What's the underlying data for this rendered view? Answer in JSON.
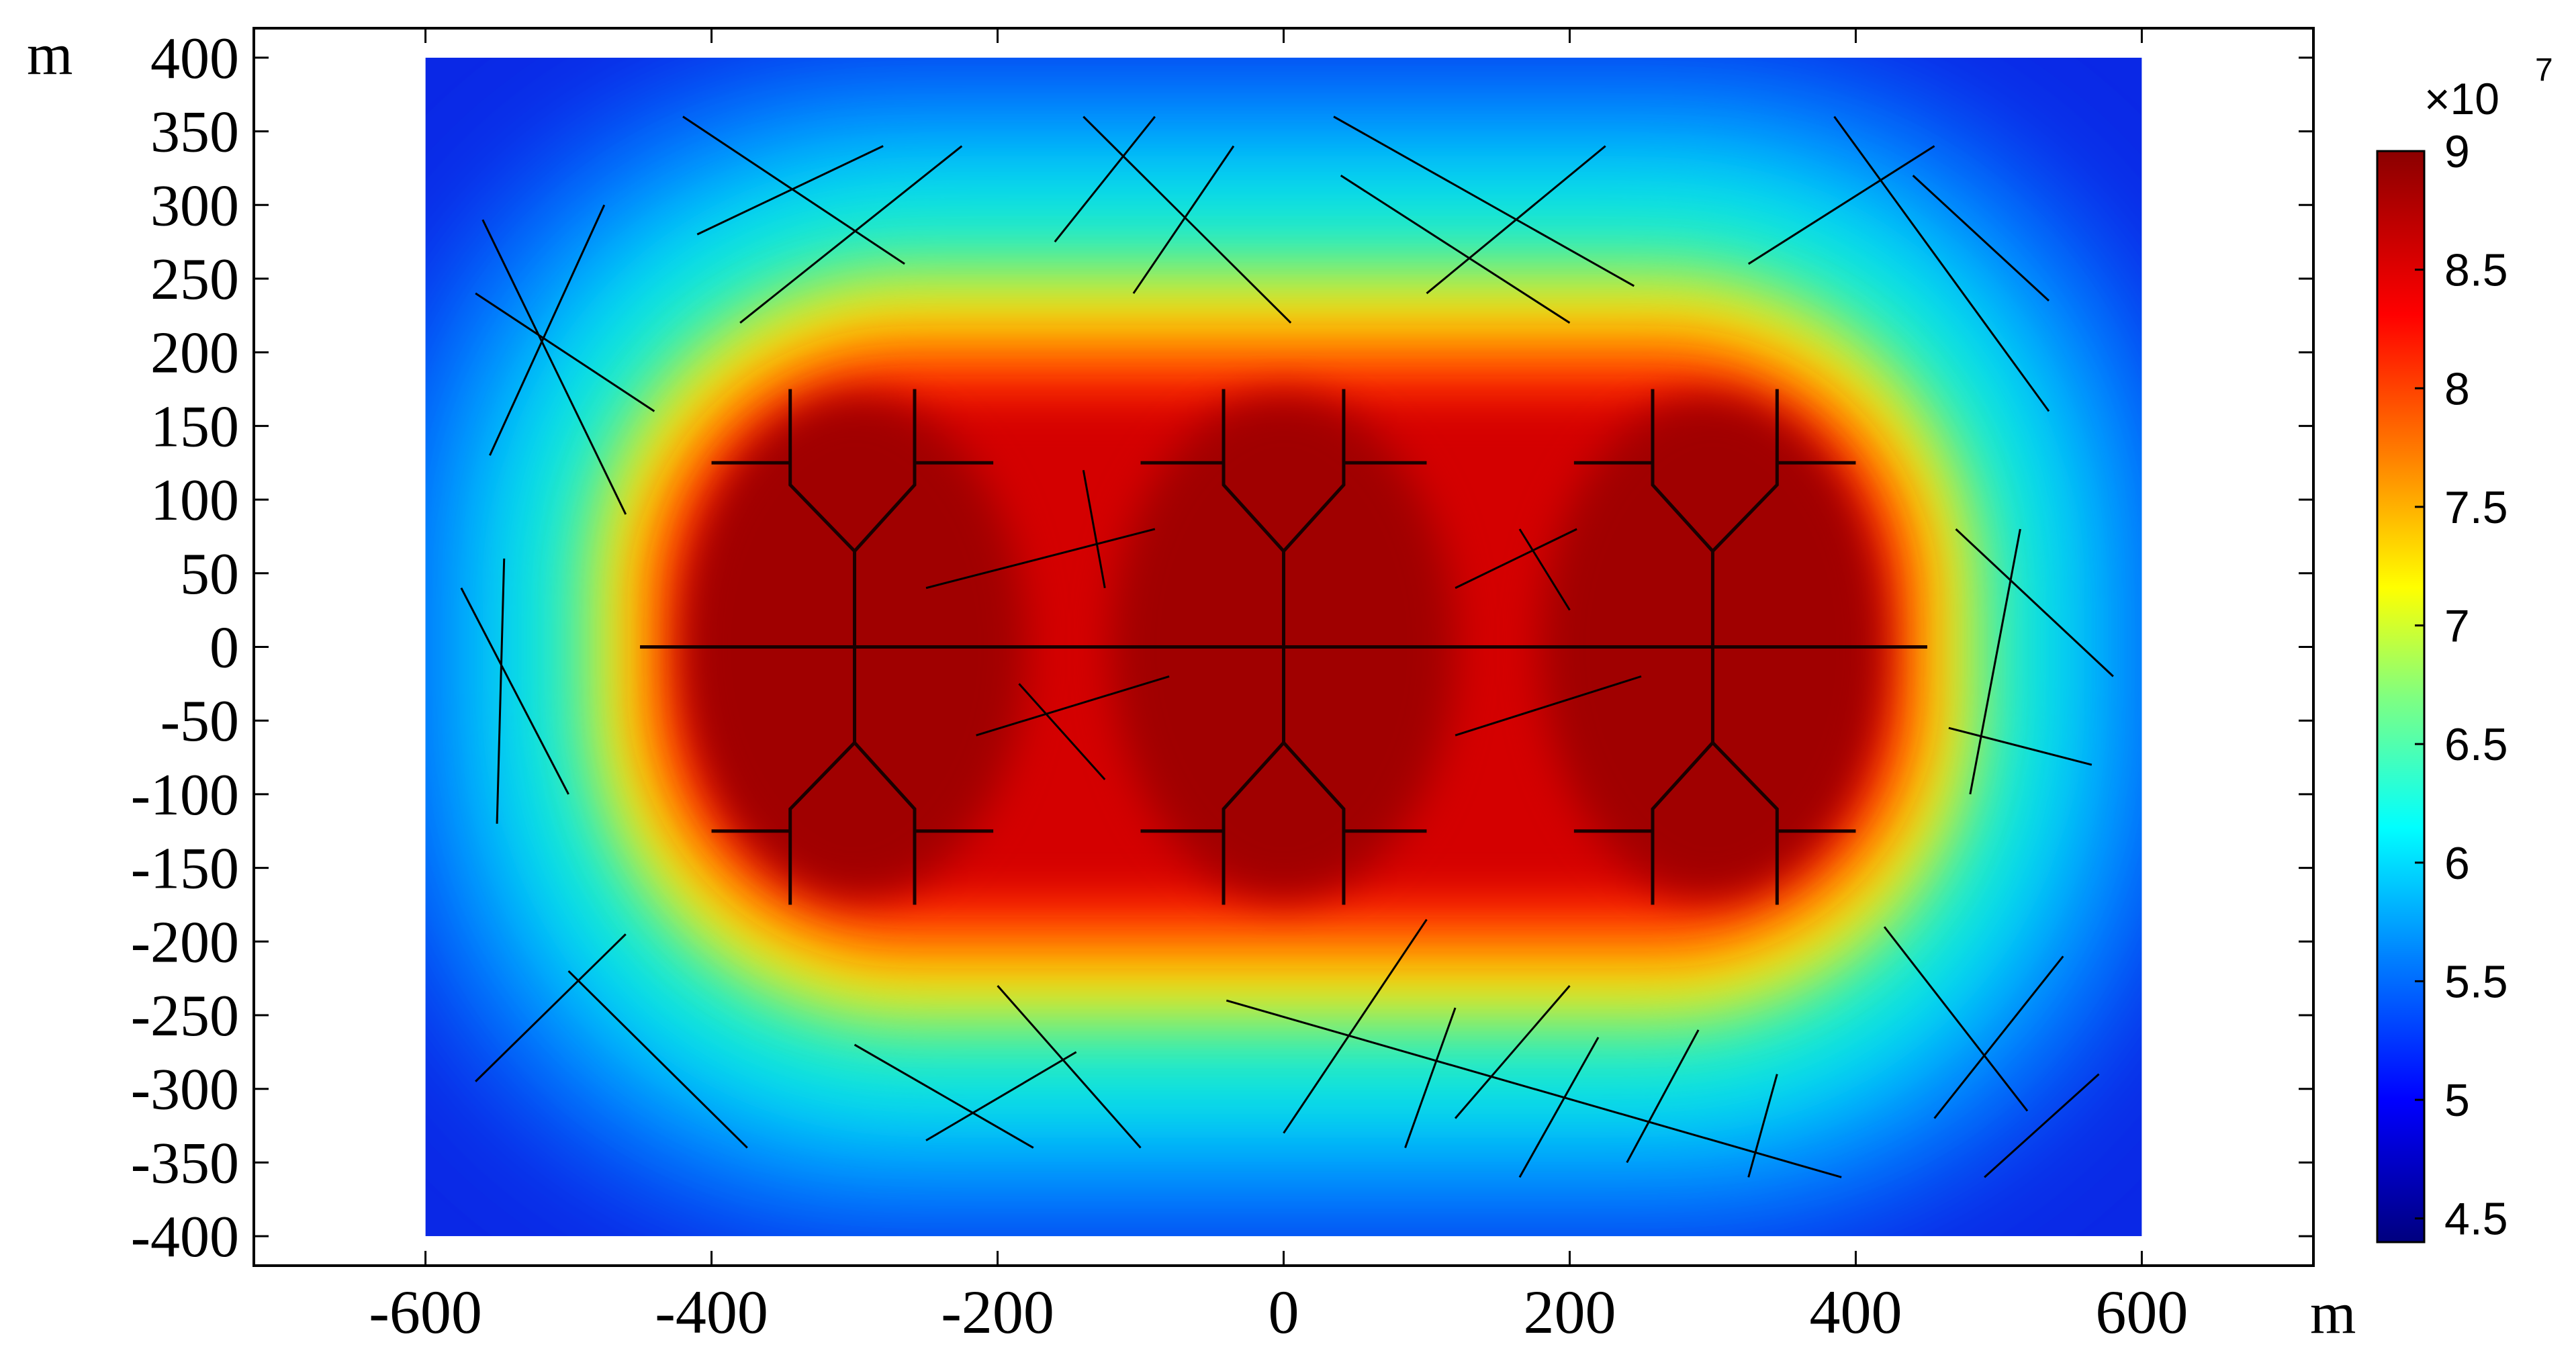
{
  "chart_data": {
    "type": "heatmap",
    "x_unit_label": "m",
    "y_unit_label": "m",
    "xlim": [
      -720,
      720
    ],
    "ylim": [
      -420,
      420
    ],
    "x_ticks": [
      -600,
      -400,
      -200,
      0,
      200,
      400,
      600
    ],
    "y_ticks": [
      400,
      350,
      300,
      250,
      200,
      150,
      100,
      50,
      0,
      -50,
      -100,
      -150,
      -200,
      -250,
      -300,
      -350,
      -400
    ],
    "x_tick_labels": [
      "-600",
      "-400",
      "-200",
      "0",
      "200",
      "400",
      "600"
    ],
    "y_tick_labels": [
      "400",
      "350",
      "300",
      "250",
      "200",
      "150",
      "100",
      "50",
      "0",
      "-50",
      "-100",
      "-150",
      "-200",
      "-250",
      "-300",
      "-350",
      "-400"
    ],
    "domain": {
      "x": [
        -600,
        600
      ],
      "y": [
        -400,
        400
      ]
    },
    "colorbar": {
      "multiplier_label": "×10",
      "multiplier_exponent": "7",
      "range": [
        4.4,
        9.0
      ],
      "ticks": [
        9,
        8.5,
        8,
        7.5,
        7,
        6.5,
        6,
        5.5,
        5,
        4.5
      ],
      "tick_labels": [
        "9",
        "8.5",
        "8",
        "7.5",
        "7",
        "6.5",
        "6",
        "5.5",
        "5",
        "4.5"
      ],
      "colormap": [
        "#00007f",
        "#0000ff",
        "#0080ff",
        "#00ffff",
        "#80ff80",
        "#ffff00",
        "#ff8000",
        "#ff0000",
        "#8b0000"
      ]
    },
    "field_description_values": {
      "high_region_level": 9.0,
      "background_level": 4.5
    },
    "hydraulic_fractures": [
      {
        "name": "well",
        "points": [
          [
            -450,
            0
          ],
          [
            450,
            0
          ]
        ]
      },
      {
        "points": [
          [
            -300,
            0
          ],
          [
            -300,
            65
          ],
          [
            -345,
            110
          ],
          [
            -345,
            175
          ]
        ]
      },
      {
        "points": [
          [
            -300,
            65
          ],
          [
            -258,
            110
          ],
          [
            -258,
            175
          ]
        ]
      },
      {
        "points": [
          [
            -345,
            125
          ],
          [
            -400,
            125
          ]
        ]
      },
      {
        "points": [
          [
            -258,
            125
          ],
          [
            -203,
            125
          ]
        ]
      },
      {
        "points": [
          [
            -300,
            0
          ],
          [
            -300,
            -65
          ],
          [
            -345,
            -110
          ],
          [
            -345,
            -175
          ]
        ]
      },
      {
        "points": [
          [
            -300,
            -65
          ],
          [
            -258,
            -110
          ],
          [
            -258,
            -175
          ]
        ]
      },
      {
        "points": [
          [
            -345,
            -125
          ],
          [
            -400,
            -125
          ]
        ]
      },
      {
        "points": [
          [
            -258,
            -125
          ],
          [
            -203,
            -125
          ]
        ]
      },
      {
        "points": [
          [
            0,
            0
          ],
          [
            0,
            65
          ],
          [
            -42,
            110
          ],
          [
            -42,
            175
          ]
        ]
      },
      {
        "points": [
          [
            0,
            65
          ],
          [
            42,
            110
          ],
          [
            42,
            175
          ]
        ]
      },
      {
        "points": [
          [
            -42,
            125
          ],
          [
            -100,
            125
          ]
        ]
      },
      {
        "points": [
          [
            42,
            125
          ],
          [
            100,
            125
          ]
        ]
      },
      {
        "points": [
          [
            0,
            0
          ],
          [
            0,
            -65
          ],
          [
            -42,
            -110
          ],
          [
            -42,
            -175
          ]
        ]
      },
      {
        "points": [
          [
            0,
            -65
          ],
          [
            42,
            -110
          ],
          [
            42,
            -175
          ]
        ]
      },
      {
        "points": [
          [
            -42,
            -125
          ],
          [
            -100,
            -125
          ]
        ]
      },
      {
        "points": [
          [
            42,
            -125
          ],
          [
            100,
            -125
          ]
        ]
      },
      {
        "points": [
          [
            300,
            0
          ],
          [
            300,
            65
          ],
          [
            258,
            110
          ],
          [
            258,
            175
          ]
        ]
      },
      {
        "points": [
          [
            300,
            65
          ],
          [
            345,
            110
          ],
          [
            345,
            175
          ]
        ]
      },
      {
        "points": [
          [
            258,
            125
          ],
          [
            203,
            125
          ]
        ]
      },
      {
        "points": [
          [
            345,
            125
          ],
          [
            400,
            125
          ]
        ]
      },
      {
        "points": [
          [
            300,
            0
          ],
          [
            300,
            -65
          ],
          [
            258,
            -110
          ],
          [
            258,
            -175
          ]
        ]
      },
      {
        "points": [
          [
            300,
            -65
          ],
          [
            345,
            -110
          ],
          [
            345,
            -175
          ]
        ]
      },
      {
        "points": [
          [
            258,
            -125
          ],
          [
            203,
            -125
          ]
        ]
      },
      {
        "points": [
          [
            345,
            -125
          ],
          [
            400,
            -125
          ]
        ]
      }
    ],
    "natural_fractures": [
      [
        [
          -420,
          360
        ],
        [
          -265,
          260
        ]
      ],
      [
        [
          -410,
          280
        ],
        [
          -280,
          340
        ]
      ],
      [
        [
          -380,
          220
        ],
        [
          -225,
          340
        ]
      ],
      [
        [
          -160,
          275
        ],
        [
          -90,
          360
        ]
      ],
      [
        [
          -140,
          360
        ],
        [
          5,
          220
        ]
      ],
      [
        [
          -105,
          240
        ],
        [
          -35,
          340
        ]
      ],
      [
        [
          35,
          360
        ],
        [
          245,
          245
        ]
      ],
      [
        [
          40,
          320
        ],
        [
          200,
          220
        ]
      ],
      [
        [
          100,
          240
        ],
        [
          225,
          340
        ]
      ],
      [
        [
          325,
          260
        ],
        [
          455,
          340
        ]
      ],
      [
        [
          385,
          360
        ],
        [
          535,
          160
        ]
      ],
      [
        [
          440,
          320
        ],
        [
          535,
          235
        ]
      ],
      [
        [
          -565,
          240
        ],
        [
          -440,
          160
        ]
      ],
      [
        [
          -560,
          290
        ],
        [
          -460,
          90
        ]
      ],
      [
        [
          -555,
          130
        ],
        [
          -475,
          300
        ]
      ],
      [
        [
          -575,
          40
        ],
        [
          -500,
          -100
        ]
      ],
      [
        [
          -545,
          60
        ],
        [
          -550,
          -120
        ]
      ],
      [
        [
          -250,
          40
        ],
        [
          -90,
          80
        ]
      ],
      [
        [
          -140,
          120
        ],
        [
          -125,
          40
        ]
      ],
      [
        [
          120,
          40
        ],
        [
          205,
          80
        ]
      ],
      [
        [
          165,
          80
        ],
        [
          200,
          25
        ]
      ],
      [
        [
          -215,
          -60
        ],
        [
          -80,
          -20
        ]
      ],
      [
        [
          -185,
          -25
        ],
        [
          -125,
          -90
        ]
      ],
      [
        [
          120,
          -60
        ],
        [
          250,
          -20
        ]
      ],
      [
        [
          465,
          -55
        ],
        [
          565,
          -80
        ]
      ],
      [
        [
          470,
          80
        ],
        [
          580,
          -20
        ]
      ],
      [
        [
          515,
          80
        ],
        [
          480,
          -100
        ]
      ],
      [
        [
          -565,
          -295
        ],
        [
          -460,
          -195
        ]
      ],
      [
        [
          -500,
          -220
        ],
        [
          -375,
          -340
        ]
      ],
      [
        [
          -300,
          -270
        ],
        [
          -175,
          -340
        ]
      ],
      [
        [
          -250,
          -335
        ],
        [
          -145,
          -275
        ]
      ],
      [
        [
          -200,
          -230
        ],
        [
          -100,
          -340
        ]
      ],
      [
        [
          -40,
          -240
        ],
        [
          390,
          -360
        ]
      ],
      [
        [
          0,
          -330
        ],
        [
          100,
          -185
        ]
      ],
      [
        [
          85,
          -340
        ],
        [
          120,
          -245
        ]
      ],
      [
        [
          120,
          -320
        ],
        [
          200,
          -230
        ]
      ],
      [
        [
          165,
          -360
        ],
        [
          220,
          -265
        ]
      ],
      [
        [
          240,
          -350
        ],
        [
          290,
          -260
        ]
      ],
      [
        [
          325,
          -360
        ],
        [
          345,
          -290
        ]
      ],
      [
        [
          455,
          -320
        ],
        [
          545,
          -210
        ]
      ],
      [
        [
          490,
          -360
        ],
        [
          570,
          -290
        ]
      ],
      [
        [
          420,
          -190
        ],
        [
          520,
          -315
        ]
      ]
    ]
  }
}
